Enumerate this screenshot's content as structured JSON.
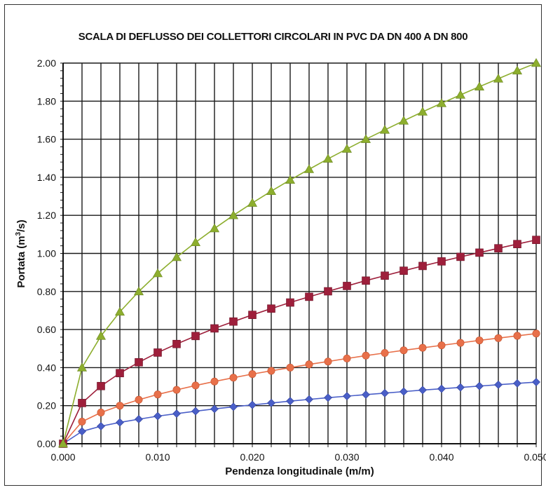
{
  "chart_data": {
    "type": "line",
    "title": "SCALA DI DEFLUSSO DEI COLLETTORI CIRCOLARI IN PVC DA DN 400 A DN 800",
    "xlabel": "Pendenza longitudinale (m/m)",
    "ylabel_prefix": "Portata (m",
    "ylabel_sup": "3",
    "ylabel_suffix": "/s)",
    "xlim": [
      0,
      0.05
    ],
    "ylim": [
      0,
      2.0
    ],
    "grid": true,
    "x_tick_labels": [
      "0.000",
      "0.010",
      "0.020",
      "0.030",
      "0.040",
      "0.050"
    ],
    "y_tick_labels": [
      "0.00",
      "0.20",
      "0.40",
      "0.60",
      "0.80",
      "1.00",
      "1.20",
      "1.40",
      "1.60",
      "1.80",
      "2.00"
    ],
    "x": [
      0,
      0.002,
      0.004,
      0.006,
      0.008,
      0.01,
      0.012,
      0.014,
      0.016,
      0.018,
      0.02,
      0.022,
      0.024,
      0.026,
      0.028,
      0.03,
      0.032,
      0.034,
      0.036,
      0.038,
      0.04,
      0.042,
      0.044,
      0.046,
      0.048,
      0.05
    ],
    "series": [
      {
        "color": "#4a5fc8",
        "marker": "diamond",
        "values": [
          0,
          0.065,
          0.092,
          0.112,
          0.129,
          0.145,
          0.158,
          0.171,
          0.183,
          0.194,
          0.204,
          0.214,
          0.224,
          0.233,
          0.242,
          0.25,
          0.258,
          0.266,
          0.274,
          0.282,
          0.289,
          0.296,
          0.303,
          0.31,
          0.317,
          0.324
        ]
      },
      {
        "color": "#e8704a",
        "marker": "circle",
        "values": [
          0,
          0.116,
          0.164,
          0.2,
          0.231,
          0.259,
          0.283,
          0.306,
          0.327,
          0.347,
          0.366,
          0.383,
          0.4,
          0.417,
          0.432,
          0.448,
          0.463,
          0.477,
          0.491,
          0.504,
          0.517,
          0.53,
          0.543,
          0.555,
          0.567,
          0.579
        ]
      },
      {
        "color": "#9e1f3b",
        "marker": "square",
        "values": [
          0,
          0.214,
          0.303,
          0.371,
          0.428,
          0.479,
          0.524,
          0.566,
          0.606,
          0.642,
          0.677,
          0.71,
          0.742,
          0.772,
          0.801,
          0.829,
          0.857,
          0.883,
          0.909,
          0.934,
          0.958,
          0.982,
          1.004,
          1.027,
          1.049,
          1.071
        ]
      },
      {
        "color": "#8dae2e",
        "marker": "triangle",
        "values": [
          0,
          0.4,
          0.566,
          0.693,
          0.8,
          0.895,
          0.98,
          1.058,
          1.131,
          1.2,
          1.265,
          1.327,
          1.386,
          1.442,
          1.497,
          1.549,
          1.6,
          1.649,
          1.697,
          1.744,
          1.789,
          1.833,
          1.876,
          1.918,
          1.96,
          2.0
        ]
      }
    ]
  }
}
